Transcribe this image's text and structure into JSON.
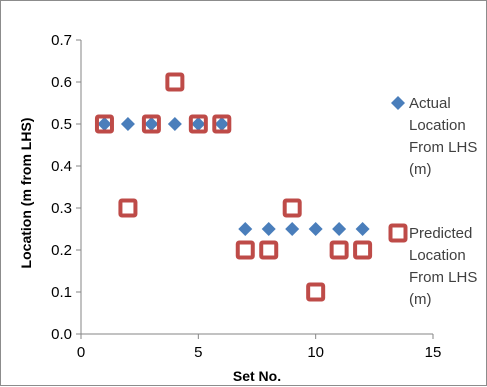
{
  "chart_data": {
    "type": "scatter",
    "title": "",
    "xlabel": "Set No.",
    "ylabel": "Location (m from LHS)",
    "xlim": [
      0,
      15
    ],
    "ylim": [
      0,
      0.7
    ],
    "xticks": [
      "0",
      "5",
      "10",
      "15"
    ],
    "yticks": [
      "0.0",
      "0.1",
      "0.2",
      "0.3",
      "0.4",
      "0.5",
      "0.6",
      "0.7"
    ],
    "grid": false,
    "legend_position": "right",
    "series": [
      {
        "name": "Actual Location From LHS (m)",
        "legend_lines": [
          "Actual",
          "Location",
          "From LHS",
          "(m)"
        ],
        "marker": "diamond",
        "color": "#4a7ebb",
        "points": [
          {
            "x": 1,
            "y": 0.5
          },
          {
            "x": 2,
            "y": 0.5
          },
          {
            "x": 3,
            "y": 0.5
          },
          {
            "x": 4,
            "y": 0.5
          },
          {
            "x": 5,
            "y": 0.5
          },
          {
            "x": 6,
            "y": 0.5
          },
          {
            "x": 7,
            "y": 0.25
          },
          {
            "x": 8,
            "y": 0.25
          },
          {
            "x": 9,
            "y": 0.25
          },
          {
            "x": 10,
            "y": 0.25
          },
          {
            "x": 11,
            "y": 0.25
          },
          {
            "x": 12,
            "y": 0.25
          }
        ]
      },
      {
        "name": "Predicted Location From LHS (m)",
        "legend_lines": [
          "Predicted",
          "Location",
          "From LHS",
          "(m)"
        ],
        "marker": "square-open",
        "color": "#be4b48",
        "points": [
          {
            "x": 1,
            "y": 0.5
          },
          {
            "x": 2,
            "y": 0.3
          },
          {
            "x": 3,
            "y": 0.5
          },
          {
            "x": 4,
            "y": 0.6
          },
          {
            "x": 5,
            "y": 0.5
          },
          {
            "x": 6,
            "y": 0.5
          },
          {
            "x": 7,
            "y": 0.2
          },
          {
            "x": 8,
            "y": 0.2
          },
          {
            "x": 9,
            "y": 0.3
          },
          {
            "x": 10,
            "y": 0.1
          },
          {
            "x": 11,
            "y": 0.2
          },
          {
            "x": 12,
            "y": 0.2
          }
        ]
      }
    ]
  }
}
